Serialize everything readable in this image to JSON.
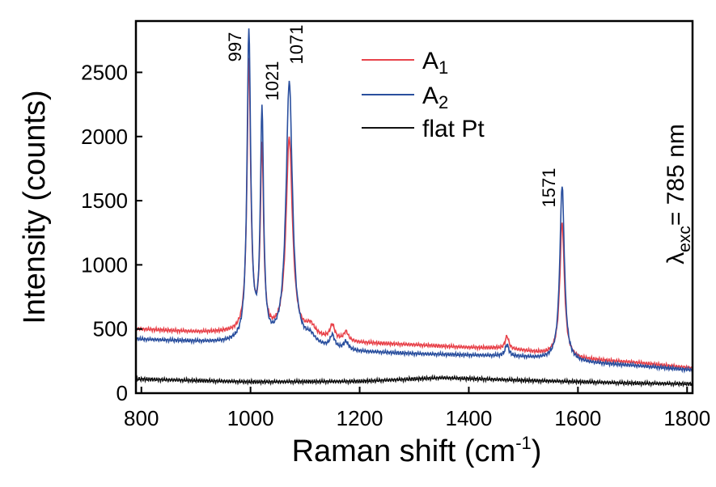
{
  "chart_data": {
    "type": "line",
    "xlabel": "Raman shift (cm",
    "xlabel_sup": "-1",
    "xlabel_end": ")",
    "ylabel": "Intensity (counts)",
    "xlim": [
      790,
      1810
    ],
    "ylim": [
      0,
      2900
    ],
    "xticks": [
      "800",
      "1000",
      "1200",
      "1400",
      "1600",
      "1800"
    ],
    "yticks": [
      "0",
      "500",
      "1000",
      "1500",
      "2000",
      "2500"
    ],
    "grid": false,
    "legend_position": "top-center",
    "peak_labels": [
      "997",
      "1021",
      "1071",
      "1571"
    ],
    "annotation": {
      "lambda": "λ",
      "sub": "exc",
      "rest": "= 785 nm"
    },
    "series": [
      {
        "name": "A",
        "name_sub": "1",
        "color": "#e8434b",
        "baseline": [
          [
            790,
            500
          ],
          [
            900,
            475
          ],
          [
            950,
            470
          ],
          [
            1000,
            460
          ],
          [
            1100,
            430
          ],
          [
            1200,
            390
          ],
          [
            1300,
            375
          ],
          [
            1400,
            355
          ],
          [
            1450,
            350
          ],
          [
            1500,
            330
          ],
          [
            1600,
            265
          ],
          [
            1700,
            240
          ],
          [
            1810,
            195
          ]
        ],
        "peaks": [
          [
            997,
            2100,
            4
          ],
          [
            1021,
            1420,
            3.5
          ],
          [
            1071,
            1540,
            7
          ],
          [
            1110,
            80,
            10
          ],
          [
            1150,
            110,
            5
          ],
          [
            1175,
            70,
            5
          ],
          [
            1470,
            100,
            4
          ],
          [
            1571,
            1050,
            5
          ]
        ]
      },
      {
        "name": "A",
        "name_sub": "2",
        "color": "#2a4f9e",
        "baseline": [
          [
            790,
            420
          ],
          [
            900,
            400
          ],
          [
            950,
            390
          ],
          [
            1000,
            380
          ],
          [
            1100,
            360
          ],
          [
            1200,
            320
          ],
          [
            1300,
            305
          ],
          [
            1400,
            295
          ],
          [
            1450,
            290
          ],
          [
            1500,
            280
          ],
          [
            1600,
            240
          ],
          [
            1700,
            215
          ],
          [
            1810,
            180
          ]
        ],
        "peaks": [
          [
            997,
            2420,
            4
          ],
          [
            1021,
            1770,
            3.5
          ],
          [
            1071,
            2050,
            7
          ],
          [
            1110,
            60,
            10
          ],
          [
            1150,
            95,
            5
          ],
          [
            1175,
            60,
            5
          ],
          [
            1470,
            90,
            4
          ],
          [
            1571,
            1370,
            5
          ]
        ]
      },
      {
        "name": "flat Pt",
        "color": "#111111",
        "baseline": [
          [
            790,
            110
          ],
          [
            1000,
            88
          ],
          [
            1200,
            92
          ],
          [
            1350,
            120
          ],
          [
            1500,
            100
          ],
          [
            1700,
            78
          ],
          [
            1810,
            72
          ]
        ],
        "peaks": []
      }
    ]
  }
}
